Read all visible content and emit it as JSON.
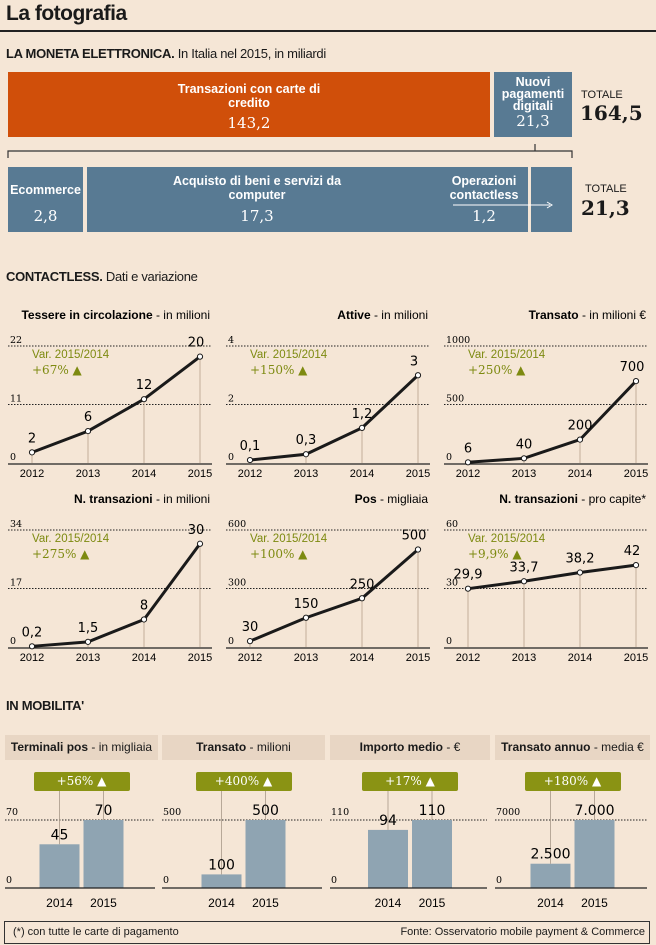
{
  "title": "La fotografia",
  "colors": {
    "background": "#f5e6d6",
    "orange": "#d04f0a",
    "blue": "#587a93",
    "green": "#8a9314",
    "bar": "#8fa4b2"
  },
  "moneta": {
    "heading": "LA MONETA ELETTRONICA.",
    "subheading": "In Italia nel 2015, in miliardi",
    "top": [
      {
        "label": "Transazioni con carte di credito",
        "value": "143,2"
      },
      {
        "label": "Nuovi pagamenti digitali",
        "value": "21,3"
      }
    ],
    "total_label": "TOTALE",
    "total": "164,5",
    "bottom": [
      {
        "label": "Ecommerce",
        "value": "2,8"
      },
      {
        "label": "Acquisto di beni e servizi da computer",
        "value": "17,3"
      },
      {
        "label": "Operazioni contactless",
        "value": "1,2"
      }
    ],
    "total2_label": "TOTALE",
    "total2": "21,3"
  },
  "contactless": {
    "heading": "CONTACTLESS.",
    "subheading": "Dati e variazione"
  },
  "chart_data": [
    {
      "type": "line",
      "title": "Tessere in circolazione",
      "unit": "- in milioni",
      "x": [
        "2012",
        "2013",
        "2014",
        "2015"
      ],
      "values": [
        2,
        6,
        12,
        20
      ],
      "labels": [
        "2",
        "6",
        "12",
        "20"
      ],
      "ylim": [
        0,
        22
      ],
      "yticks": [
        "0",
        "11",
        "22"
      ],
      "var_label": "Var. 2015/2014",
      "var": "+67% ▲"
    },
    {
      "type": "line",
      "title": "Attive",
      "unit": "- in milioni",
      "x": [
        "2012",
        "2013",
        "2014",
        "2015"
      ],
      "values": [
        0.1,
        0.3,
        1.2,
        3
      ],
      "labels": [
        "0,1",
        "0,3",
        "1,2",
        "3"
      ],
      "ylim": [
        0,
        4
      ],
      "yticks": [
        "0",
        "2",
        "4"
      ],
      "var_label": "Var. 2015/2014",
      "var": "+150% ▲"
    },
    {
      "type": "line",
      "title": "Transato",
      "unit": "- in milioni €",
      "x": [
        "2012",
        "2013",
        "2014",
        "2015"
      ],
      "values": [
        6,
        40,
        200,
        700
      ],
      "labels": [
        "6",
        "40",
        "200",
        "700"
      ],
      "ylim": [
        0,
        1000
      ],
      "yticks": [
        "0",
        "500",
        "1000"
      ],
      "var_label": "Var. 2015/2014",
      "var": "+250% ▲"
    },
    {
      "type": "line",
      "title": "N. transazioni",
      "unit": "- in milioni",
      "x": [
        "2012",
        "2013",
        "2014",
        "2015"
      ],
      "values": [
        0.2,
        1.5,
        8,
        30
      ],
      "labels": [
        "0,2",
        "1,5",
        "8",
        "30"
      ],
      "ylim": [
        0,
        34
      ],
      "yticks": [
        "0",
        "17",
        "34"
      ],
      "var_label": "Var. 2015/2014",
      "var": "+275% ▲"
    },
    {
      "type": "line",
      "title": "Pos",
      "unit": "- migliaia",
      "x": [
        "2012",
        "2013",
        "2014",
        "2015"
      ],
      "values": [
        30,
        150,
        250,
        500
      ],
      "labels": [
        "30",
        "150",
        "250",
        "500"
      ],
      "ylim": [
        0,
        600
      ],
      "yticks": [
        "0",
        "300",
        "600"
      ],
      "var_label": "Var. 2015/2014",
      "var": "+100% ▲"
    },
    {
      "type": "line",
      "title": "N. transazioni",
      "unit": "- pro capite*",
      "x": [
        "2012",
        "2013",
        "2014",
        "2015"
      ],
      "values": [
        29.9,
        33.7,
        38.2,
        42
      ],
      "labels": [
        "29,9",
        "33,7",
        "38,2",
        "42"
      ],
      "ylim": [
        0,
        60
      ],
      "yticks": [
        "0",
        "30",
        "60"
      ],
      "var_label": "Var. 2015/2014",
      "var": "+9,9% ▲"
    },
    {
      "type": "bar",
      "title": "Terminali pos",
      "unit": "- in migliaia",
      "categories": [
        "2014",
        "2015"
      ],
      "values": [
        45,
        70
      ],
      "labels": [
        "45",
        "70"
      ],
      "ylim": [
        0,
        70
      ],
      "yticks": [
        "0",
        "70"
      ],
      "var": "+56% ▲"
    },
    {
      "type": "bar",
      "title": "Transato",
      "unit": "- milioni",
      "categories": [
        "2014",
        "2015"
      ],
      "values": [
        100,
        500
      ],
      "labels": [
        "100",
        "500"
      ],
      "ylim": [
        0,
        500
      ],
      "yticks": [
        "0",
        "500"
      ],
      "var": "+400% ▲"
    },
    {
      "type": "bar",
      "title": "Importo medio",
      "unit": "- €",
      "categories": [
        "2014",
        "2015"
      ],
      "values": [
        94,
        110
      ],
      "labels": [
        "94",
        "110"
      ],
      "ylim": [
        0,
        110
      ],
      "yticks": [
        "0",
        "110"
      ],
      "var": "+17% ▲"
    },
    {
      "type": "bar",
      "title": "Transato annuo",
      "unit": "- media €",
      "categories": [
        "2014",
        "2015"
      ],
      "values": [
        2500,
        7000
      ],
      "labels": [
        "2.500",
        "7.000"
      ],
      "ylim": [
        0,
        7000
      ],
      "yticks": [
        "0",
        "7000"
      ],
      "var": "+180% ▲"
    }
  ],
  "mobilita": {
    "heading": "IN MOBILITA'"
  },
  "footer": {
    "note": "(*) con tutte le carte di pagamento",
    "source": "Fonte: Osservatorio mobile payment & Commerce"
  }
}
